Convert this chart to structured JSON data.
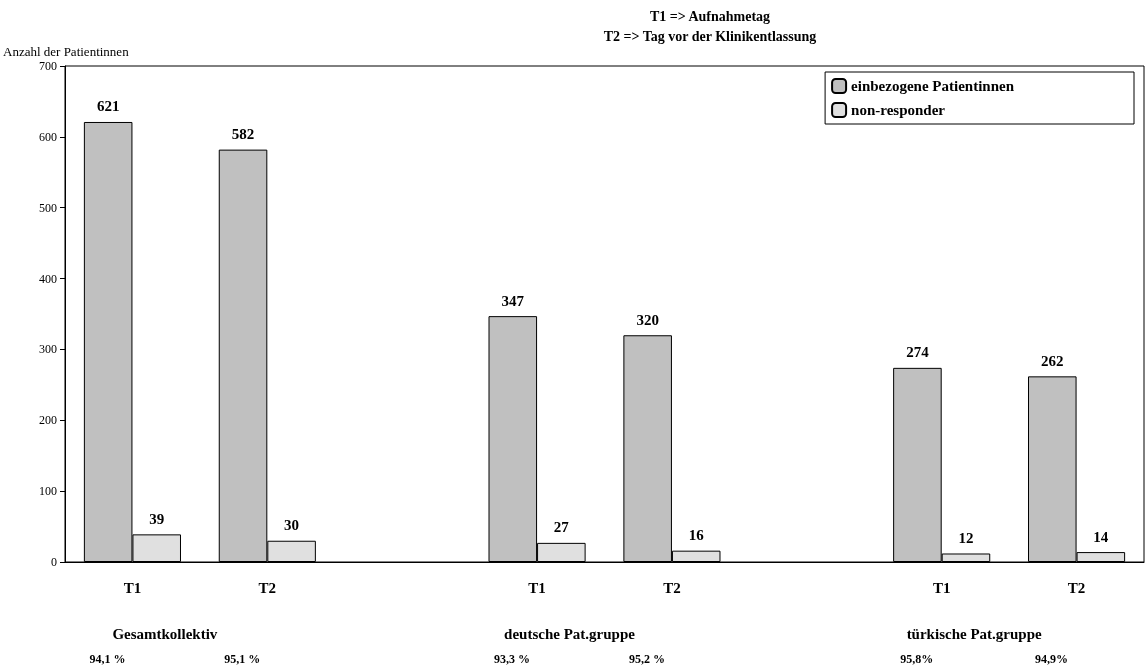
{
  "chart_data": {
    "type": "bar",
    "title": "T1 => Aufnahmetag",
    "subtitle": "T2 => Tag vor der Klinikentlassung",
    "ylabel": "Anzahl der Patientinnen",
    "categories": [
      "T1",
      "T2",
      null,
      "T1",
      "T2",
      null,
      "T1",
      "T2"
    ],
    "series": [
      {
        "name": "einbezogene Patientinnen",
        "color": "#c0c0c0",
        "values": [
          621,
          582,
          null,
          347,
          320,
          null,
          274,
          262
        ]
      },
      {
        "name": "non-responder",
        "color": "#e0e0e0",
        "values": [
          39,
          30,
          null,
          27,
          16,
          null,
          12,
          14
        ]
      }
    ],
    "ylim": [
      0,
      700
    ],
    "yticks": [
      0,
      100,
      200,
      300,
      400,
      500,
      600,
      700
    ],
    "grid": false,
    "legend": "top right",
    "data_labels": true,
    "annotations": [
      "Gesamtkollektiv",
      "deutsche Pat.gruppe",
      "türkische Pat.gruppe",
      "94,1 %",
      "95,1 %",
      "93,3 %",
      "95,2 %",
      "95,8%",
      "94,9%"
    ]
  }
}
